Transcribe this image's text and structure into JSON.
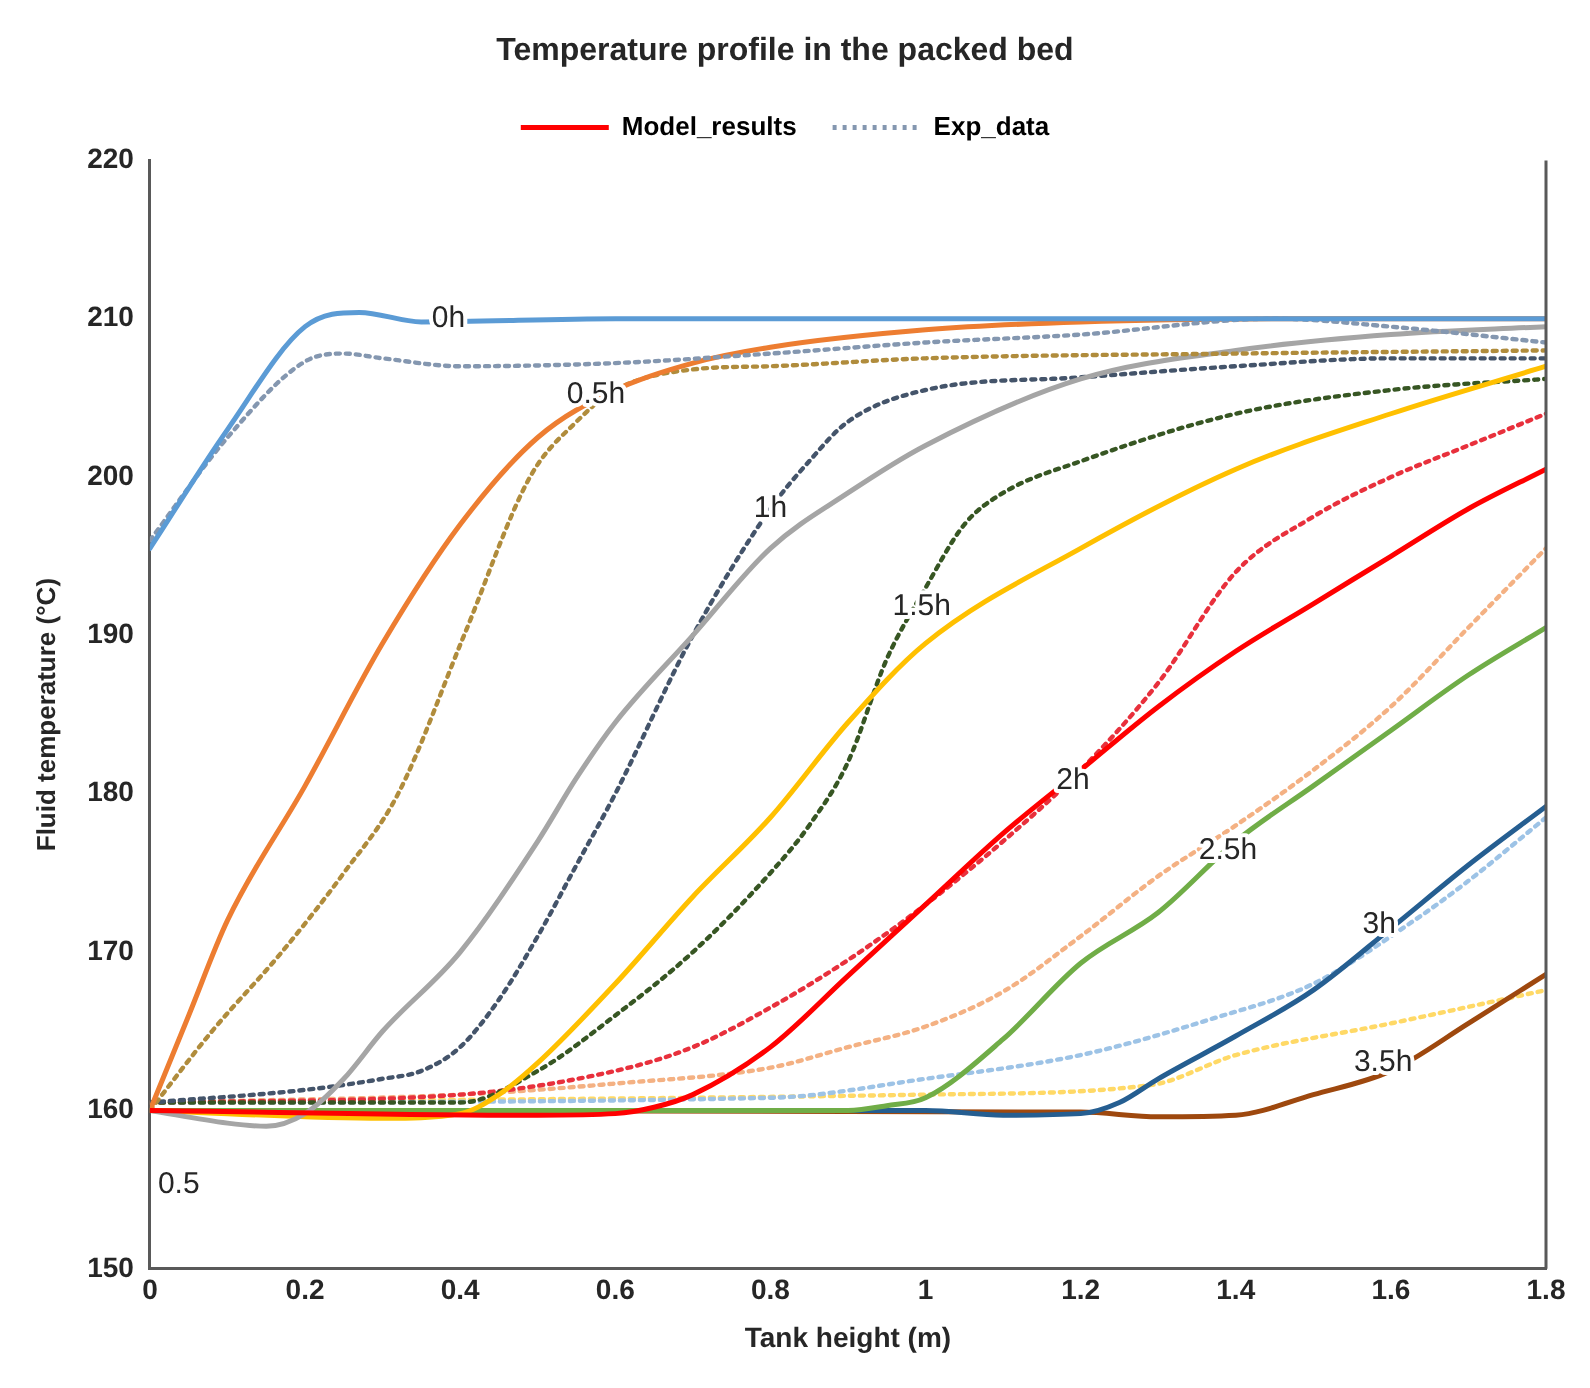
{
  "chart_data": {
    "type": "line",
    "title": "Temperature profile in the packed bed",
    "xlabel": "Tank height (m)",
    "ylabel": "Fluid temperature (°C)",
    "xlim": [
      0,
      1.8
    ],
    "xticks": [
      0,
      0.2,
      0.4,
      0.6,
      0.8,
      1,
      1.2,
      1.4,
      1.6,
      1.8
    ],
    "ylim": [
      150,
      220
    ],
    "yticks": [
      150,
      160,
      170,
      180,
      190,
      200,
      210,
      220
    ],
    "grid": false,
    "legend": "top",
    "marker": "none",
    "series": [
      {
        "name": "Model_results",
        "color": "#ff0000",
        "line_style": "solid",
        "x": [
          0,
          0.5,
          0.6,
          0.65,
          0.7,
          0.8,
          0.9,
          1.0,
          1.1,
          1.2,
          1.3,
          1.4,
          1.5,
          1.6,
          1.7,
          1.8
        ],
        "values": [
          160,
          159.7,
          159.8,
          160.2,
          161,
          164,
          168.5,
          173,
          177.5,
          181.5,
          185.5,
          189,
          192,
          195,
          198,
          200.5
        ]
      },
      {
        "color": "#5b9bd5",
        "line_style": "solid",
        "x": [
          0,
          0.1,
          0.2,
          0.27,
          0.35,
          0.6,
          1.0,
          1.4,
          1.8
        ],
        "values": [
          195.5,
          203,
          209.5,
          210.4,
          209.8,
          210,
          210,
          210,
          210
        ]
      },
      {
        "name": "Exp_data",
        "color": "#8497b0",
        "line_style": "dotted",
        "x": [
          0,
          0.1,
          0.2,
          0.25,
          0.3,
          0.4,
          0.6,
          0.8,
          1.0,
          1.2,
          1.45,
          1.6,
          1.8
        ],
        "values": [
          196,
          202.5,
          207.3,
          207.8,
          207.5,
          207,
          207.2,
          207.8,
          208.5,
          209,
          210,
          209.5,
          208.5
        ]
      },
      {
        "color": "#ed7d31",
        "line_style": "solid",
        "x": [
          0,
          0.05,
          0.1,
          0.2,
          0.3,
          0.4,
          0.5,
          0.6,
          0.7,
          0.8,
          1.0,
          1.2,
          1.5,
          1.8
        ],
        "values": [
          160,
          166,
          172,
          180.5,
          189.5,
          197,
          202.5,
          205.5,
          207.2,
          208.2,
          209.3,
          209.8,
          210,
          210
        ]
      },
      {
        "color": "#b08c3c",
        "line_style": "dotted",
        "x": [
          0,
          0.08,
          0.17,
          0.25,
          0.32,
          0.405,
          0.49,
          0.55,
          0.6,
          0.7,
          0.8,
          1.0,
          1.4,
          1.8
        ],
        "values": [
          160,
          165,
          170,
          175,
          180,
          190,
          200,
          203.5,
          205.5,
          206.8,
          207,
          207.5,
          207.8,
          208
        ]
      },
      {
        "color": "#a5a5a5",
        "line_style": "solid",
        "x": [
          0,
          0.1,
          0.15,
          0.2,
          0.25,
          0.3,
          0.4,
          0.5,
          0.55,
          0.6,
          0.7,
          0.8,
          0.9,
          1.0,
          1.2,
          1.4,
          1.6,
          1.8
        ],
        "values": [
          160,
          159.2,
          159,
          159.8,
          162,
          165,
          170,
          177,
          181,
          184.5,
          190,
          195.5,
          199,
          202,
          206.2,
          208,
          209,
          209.5
        ]
      },
      {
        "color": "#44546a",
        "line_style": "dotted",
        "x": [
          0,
          0.2,
          0.3,
          0.35,
          0.4,
          0.45,
          0.5,
          0.55,
          0.6,
          0.7,
          0.8,
          0.85,
          0.9,
          1.0,
          1.2,
          1.4,
          1.6,
          1.8
        ],
        "values": [
          160.5,
          161.3,
          162,
          162.5,
          164,
          167,
          171,
          175.5,
          180,
          190,
          198,
          201,
          203.5,
          205.5,
          206.3,
          207,
          207.5,
          207.5
        ]
      },
      {
        "color": "#ffc000",
        "line_style": "solid",
        "x": [
          0,
          0.3,
          0.4,
          0.45,
          0.5,
          0.6,
          0.7,
          0.8,
          0.9,
          1.0,
          1.2,
          1.4,
          1.6,
          1.8
        ],
        "values": [
          160,
          159.5,
          159.8,
          161,
          163,
          168,
          173.5,
          178.5,
          184.5,
          189.5,
          195.5,
          200.5,
          204,
          207
        ]
      },
      {
        "color": "#375623",
        "line_style": "dotted",
        "x": [
          0,
          0.4,
          0.5,
          0.6,
          0.7,
          0.8,
          0.85,
          0.9,
          0.95,
          1.0,
          1.05,
          1.1,
          1.2,
          1.4,
          1.6,
          1.8
        ],
        "values": [
          160.5,
          160.5,
          162.5,
          166,
          170,
          175,
          178,
          182,
          188.5,
          193,
          197,
          199,
          201,
          204,
          205.5,
          206.2
        ]
      },
      {
        "color": "#e8303c",
        "line_style": "dotted",
        "x": [
          0,
          0.4,
          0.6,
          0.7,
          0.8,
          0.9,
          1.0,
          1.1,
          1.2,
          1.3,
          1.4,
          1.5,
          1.6,
          1.7,
          1.8
        ],
        "values": [
          160.5,
          161,
          162.5,
          164,
          166.5,
          169.5,
          173,
          177,
          181.5,
          187,
          194,
          197.5,
          200,
          202,
          204
        ]
      },
      {
        "color": "#70ad47",
        "line_style": "solid",
        "x": [
          0,
          0.9,
          0.95,
          1.0,
          1.1,
          1.2,
          1.3,
          1.4,
          1.5,
          1.6,
          1.7,
          1.8
        ],
        "values": [
          160,
          160,
          160.3,
          160.8,
          164.5,
          169.3,
          172.5,
          177,
          180.5,
          184,
          187.5,
          190.5
        ]
      },
      {
        "color": "#f4b183",
        "line_style": "dotted",
        "x": [
          0,
          0.4,
          0.6,
          0.8,
          0.9,
          1.0,
          1.1,
          1.2,
          1.3,
          1.4,
          1.5,
          1.6,
          1.7,
          1.8
        ],
        "values": [
          160.5,
          161,
          161.7,
          162.7,
          164,
          165.3,
          167.5,
          171,
          174.8,
          178,
          181.5,
          185.5,
          190.5,
          195.5
        ]
      },
      {
        "color": "#255e91",
        "line_style": "solid",
        "x": [
          0,
          1.0,
          1.1,
          1.2,
          1.25,
          1.3,
          1.4,
          1.5,
          1.6,
          1.7,
          1.8
        ],
        "values": [
          160,
          160,
          159.7,
          159.8,
          160.5,
          162,
          164.7,
          167.6,
          171.5,
          175.5,
          179.2
        ]
      },
      {
        "color": "#9dc3e6",
        "line_style": "dotted",
        "x": [
          0,
          0.8,
          1.0,
          1.2,
          1.37,
          1.5,
          1.63,
          1.7,
          1.8
        ],
        "values": [
          160.5,
          160.8,
          162,
          163.5,
          165.8,
          168,
          172,
          174.5,
          178.5
        ]
      },
      {
        "color": "#9e480e",
        "line_style": "solid",
        "x": [
          0,
          1.2,
          1.3,
          1.4,
          1.5,
          1.6,
          1.7,
          1.8
        ],
        "values": [
          160,
          159.9,
          159.6,
          159.7,
          161,
          162.5,
          165.5,
          168.6
        ]
      },
      {
        "color": "#ffd966",
        "line_style": "dotted",
        "x": [
          0,
          1.0,
          1.29,
          1.4,
          1.6,
          1.8
        ],
        "values": [
          160.5,
          161,
          161.6,
          163.5,
          165.5,
          167.6
        ]
      }
    ],
    "annotations": [
      {
        "text": "0h",
        "x": 0.385,
        "y": 210
      },
      {
        "text": "0.5h",
        "x": 0.575,
        "y": 205.2
      },
      {
        "text": "1h",
        "x": 0.8,
        "y": 198
      },
      {
        "text": "1.5h",
        "x": 0.995,
        "y": 191.8
      },
      {
        "text": "2h",
        "x": 1.19,
        "y": 180.8
      },
      {
        "text": "2.5h",
        "x": 1.39,
        "y": 176.4
      },
      {
        "text": "3h",
        "x": 1.585,
        "y": 171.7
      },
      {
        "text": "3.5h",
        "x": 1.59,
        "y": 163
      },
      "0.5"
    ]
  }
}
